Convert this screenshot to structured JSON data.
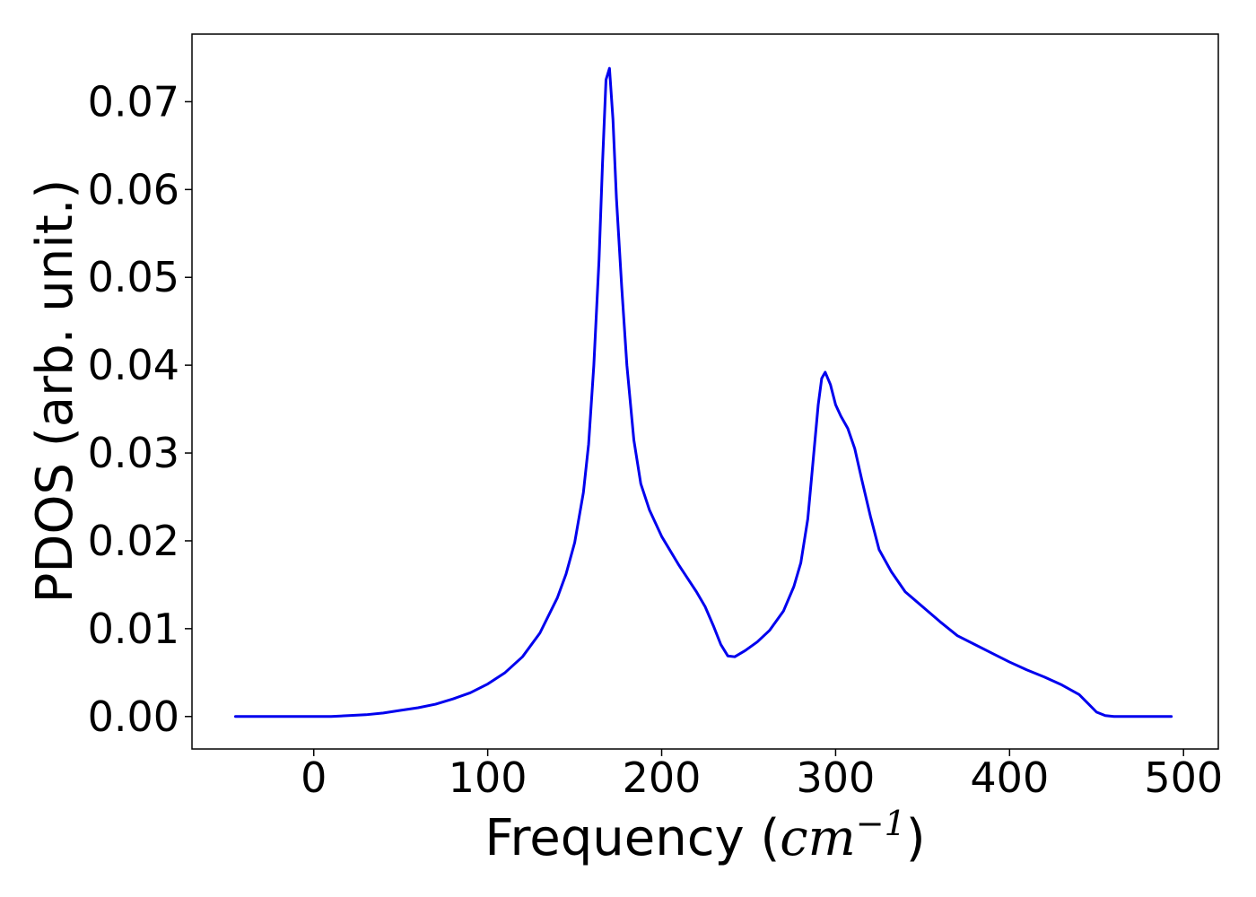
{
  "chart_data": {
    "type": "line",
    "xlabel": "Frequency (cm⁻¹)",
    "xlabel_parts": {
      "prefix": "Frequency (",
      "math_base": "cm",
      "math_sup": "−1",
      "suffix": ")"
    },
    "ylabel": "PDOS (arb. unit.)",
    "xlim": [
      -70,
      520
    ],
    "ylim": [
      -0.0037,
      0.0777
    ],
    "xticks": [
      0,
      100,
      200,
      300,
      400,
      500
    ],
    "xtick_labels": [
      "0",
      "100",
      "200",
      "300",
      "400",
      "500"
    ],
    "yticks": [
      0.0,
      0.01,
      0.02,
      0.03,
      0.04,
      0.05,
      0.06,
      0.07
    ],
    "ytick_labels": [
      "0.00",
      "0.01",
      "0.02",
      "0.03",
      "0.04",
      "0.05",
      "0.06",
      "0.07"
    ],
    "grid": false,
    "legend": "none",
    "series": [
      {
        "color": "#0000ee",
        "points": [
          [
            -45,
            0.0
          ],
          [
            0,
            0.0
          ],
          [
            10,
            0.0
          ],
          [
            20,
            0.0001
          ],
          [
            30,
            0.0002
          ],
          [
            40,
            0.0004
          ],
          [
            50,
            0.0007
          ],
          [
            60,
            0.001
          ],
          [
            70,
            0.0014
          ],
          [
            80,
            0.002
          ],
          [
            90,
            0.0027
          ],
          [
            100,
            0.0037
          ],
          [
            110,
            0.005
          ],
          [
            120,
            0.0068
          ],
          [
            130,
            0.0095
          ],
          [
            140,
            0.0135
          ],
          [
            145,
            0.0162
          ],
          [
            150,
            0.0198
          ],
          [
            155,
            0.0255
          ],
          [
            158,
            0.031
          ],
          [
            161,
            0.04
          ],
          [
            164,
            0.052
          ],
          [
            166,
            0.063
          ],
          [
            168,
            0.0725
          ],
          [
            170,
            0.0738
          ],
          [
            172,
            0.068
          ],
          [
            174,
            0.059
          ],
          [
            177,
            0.049
          ],
          [
            180,
            0.04
          ],
          [
            184,
            0.0315
          ],
          [
            188,
            0.0265
          ],
          [
            193,
            0.0235
          ],
          [
            200,
            0.0205
          ],
          [
            210,
            0.0172
          ],
          [
            220,
            0.0142
          ],
          [
            225,
            0.0125
          ],
          [
            230,
            0.0102
          ],
          [
            234,
            0.0082
          ],
          [
            238,
            0.0069
          ],
          [
            242,
            0.0068
          ],
          [
            248,
            0.0075
          ],
          [
            255,
            0.0085
          ],
          [
            262,
            0.0098
          ],
          [
            270,
            0.012
          ],
          [
            276,
            0.0148
          ],
          [
            280,
            0.0175
          ],
          [
            284,
            0.0225
          ],
          [
            287,
            0.029
          ],
          [
            290,
            0.0355
          ],
          [
            292,
            0.0385
          ],
          [
            294,
            0.0392
          ],
          [
            297,
            0.0378
          ],
          [
            300,
            0.0355
          ],
          [
            303,
            0.0342
          ],
          [
            307,
            0.0328
          ],
          [
            311,
            0.0305
          ],
          [
            315,
            0.027
          ],
          [
            320,
            0.0228
          ],
          [
            325,
            0.019
          ],
          [
            332,
            0.0165
          ],
          [
            340,
            0.0142
          ],
          [
            350,
            0.0125
          ],
          [
            360,
            0.0108
          ],
          [
            370,
            0.0092
          ],
          [
            380,
            0.0082
          ],
          [
            390,
            0.0072
          ],
          [
            400,
            0.0062
          ],
          [
            410,
            0.0053
          ],
          [
            420,
            0.0045
          ],
          [
            430,
            0.0036
          ],
          [
            440,
            0.0025
          ],
          [
            445,
            0.0015
          ],
          [
            450,
            0.0005
          ],
          [
            455,
            0.0001
          ],
          [
            460,
            0.0
          ],
          [
            493,
            0.0
          ]
        ]
      }
    ]
  }
}
